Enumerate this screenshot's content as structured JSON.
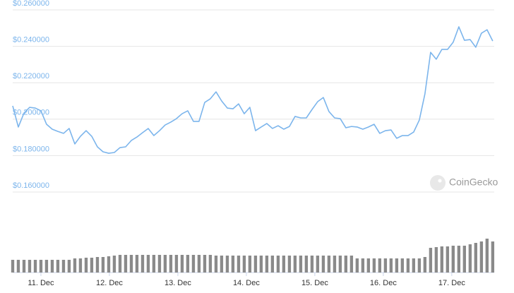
{
  "chart_data": {
    "type": "line",
    "brand": "CoinGecko",
    "x": [
      10.588,
      10.67,
      10.753,
      10.835,
      10.918,
      11.0,
      11.082,
      11.165,
      11.247,
      11.33,
      11.412,
      11.495,
      11.577,
      11.66,
      11.742,
      11.825,
      11.907,
      11.99,
      12.072,
      12.155,
      12.237,
      12.32,
      12.402,
      12.485,
      12.567,
      12.649,
      12.732,
      12.814,
      12.897,
      12.979,
      13.062,
      13.144,
      13.227,
      13.309,
      13.392,
      13.474,
      13.557,
      13.639,
      13.722,
      13.804,
      13.887,
      13.969,
      14.051,
      14.134,
      14.216,
      14.299,
      14.381,
      14.464,
      14.546,
      14.629,
      14.711,
      14.794,
      14.876,
      14.959,
      15.041,
      15.124,
      15.206,
      15.289,
      15.371,
      15.453,
      15.536,
      15.618,
      15.701,
      15.783,
      15.866,
      15.948,
      16.031,
      16.113,
      16.196,
      16.278,
      16.361,
      16.443,
      16.526,
      16.608,
      16.691,
      16.773,
      16.855,
      16.938,
      17.02,
      17.103,
      17.185,
      17.268,
      17.35,
      17.433,
      17.515,
      17.598
    ],
    "series": [
      {
        "color": "#7cb5ec",
        "values": [
          0.2073,
          0.1957,
          0.2034,
          0.2065,
          0.2061,
          0.2046,
          0.1972,
          0.1945,
          0.1933,
          0.1922,
          0.1949,
          0.1864,
          0.1906,
          0.1937,
          0.1906,
          0.1848,
          0.1821,
          0.1813,
          0.1817,
          0.1844,
          0.1848,
          0.1883,
          0.1902,
          0.1926,
          0.1949,
          0.191,
          0.1937,
          0.1968,
          0.1984,
          0.2003,
          0.203,
          0.2046,
          0.1988,
          0.1988,
          0.2092,
          0.2112,
          0.215,
          0.21,
          0.2061,
          0.2057,
          0.2084,
          0.203,
          0.2065,
          0.1937,
          0.1957,
          0.1976,
          0.1949,
          0.1964,
          0.1945,
          0.196,
          0.2015,
          0.2007,
          0.2007,
          0.2053,
          0.2096,
          0.2119,
          0.2042,
          0.2007,
          0.2003,
          0.1953,
          0.196,
          0.1957,
          0.1945,
          0.1957,
          0.1972,
          0.1922,
          0.1937,
          0.1941,
          0.1895,
          0.191,
          0.191,
          0.1929,
          0.1995,
          0.2139,
          0.2367,
          0.2329,
          0.2383,
          0.2383,
          0.2422,
          0.2507,
          0.2433,
          0.2437,
          0.2395,
          0.2472,
          0.2491,
          0.2429
        ]
      },
      {
        "color": "#8a8a8a",
        "axis": "y2",
        "values": [
          18,
          18,
          18,
          18,
          18,
          18,
          18,
          18,
          18,
          18,
          18,
          20,
          20,
          21,
          21,
          22,
          22,
          23,
          24,
          25,
          25,
          25,
          25,
          25,
          25,
          25,
          25,
          25,
          25,
          25,
          25,
          25,
          25,
          25,
          25,
          25,
          24,
          24,
          24,
          24,
          24,
          24,
          24,
          24,
          24,
          24,
          24,
          24,
          24,
          24,
          24,
          24,
          24,
          24,
          24,
          24,
          24,
          24,
          24,
          24,
          24,
          20,
          20,
          20,
          20,
          20,
          20,
          20,
          20,
          20,
          20,
          20,
          20,
          22,
          35,
          36,
          37,
          37,
          38,
          38,
          38,
          40,
          42,
          44,
          48,
          44
        ]
      }
    ],
    "xlim": [
      10.588,
      17.62
    ],
    "xticks": [
      {
        "value": 11,
        "label": "11. Dec"
      },
      {
        "value": 12,
        "label": "12. Dec"
      },
      {
        "value": 13,
        "label": "13. Dec"
      },
      {
        "value": 14,
        "label": "14. Dec"
      },
      {
        "value": 15,
        "label": "15. Dec"
      },
      {
        "value": 16,
        "label": "16. Dec"
      },
      {
        "value": 17,
        "label": "17. Dec"
      }
    ],
    "ylim": [
      0.16,
      0.26
    ],
    "yticks": [
      {
        "value": 0.16,
        "label": "$0.160000"
      },
      {
        "value": 0.18,
        "label": "$0.180000"
      },
      {
        "value": 0.2,
        "label": "$0.200000"
      },
      {
        "value": 0.22,
        "label": "$0.220000"
      },
      {
        "value": 0.24,
        "label": "$0.240000"
      },
      {
        "value": 0.26,
        "label": "$0.260000"
      }
    ],
    "y2lim": [
      0,
      100
    ],
    "grid": true
  }
}
